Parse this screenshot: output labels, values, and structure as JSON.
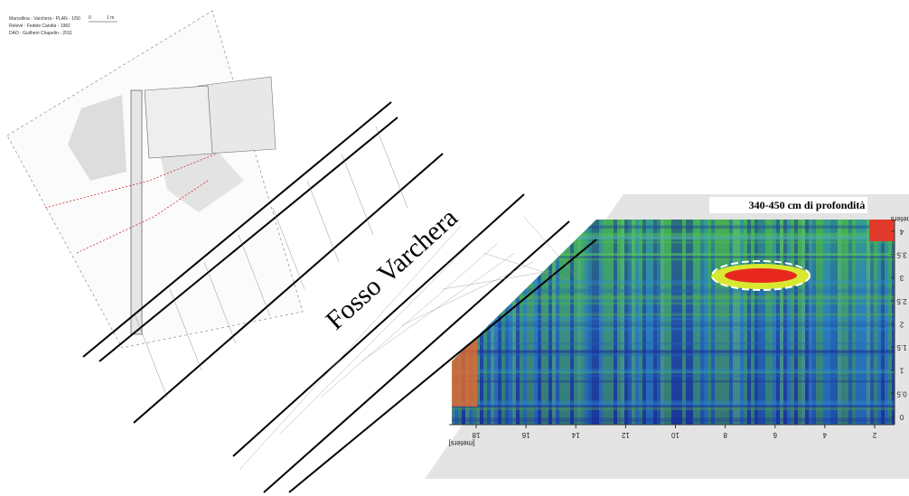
{
  "plan": {
    "lines": [
      "Marcellina - Varchera - PLAN - 1/50",
      "Relevé : Fedele Candia - 1982",
      "DAO : Guilhem Chapelin - 2011"
    ],
    "scale": [
      "0",
      "1 m"
    ]
  },
  "river": {
    "label": "Fosso Varchera"
  },
  "gpr": {
    "title": "340-450 cm di profondità",
    "y_ticks": [
      "4",
      "3.5",
      "3",
      "2.5",
      "2",
      "1.5",
      "1",
      "0.5",
      "0"
    ],
    "y_unit": "meters",
    "x_ticks": [
      "18",
      "16",
      "14",
      "12",
      "10",
      "8",
      "6",
      "4",
      "2"
    ],
    "x_unit": "[meters]"
  }
}
